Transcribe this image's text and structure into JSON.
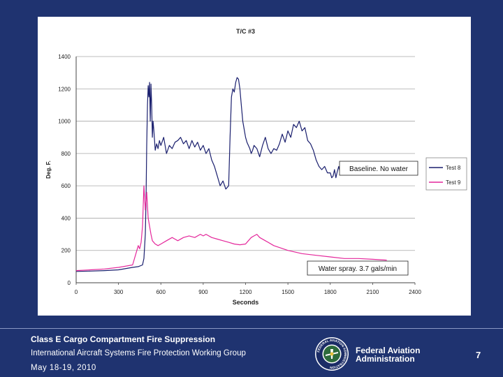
{
  "chart_data": {
    "type": "line",
    "title": "T/C #3",
    "xlabel": "Seconds",
    "ylabel": "Deg. F.",
    "xlim": [
      0,
      2400
    ],
    "ylim": [
      0,
      1400
    ],
    "xticks": [
      0,
      300,
      600,
      900,
      1200,
      1500,
      1800,
      2100,
      2400
    ],
    "yticks": [
      0,
      200,
      400,
      600,
      800,
      1000,
      1200,
      1400
    ],
    "grid": "horizontal",
    "legend_position": "right",
    "series": [
      {
        "name": "Test 8",
        "color": "#1a1f6e",
        "x": [
          0,
          100,
          200,
          300,
          400,
          440,
          470,
          480,
          490,
          495,
          500,
          505,
          510,
          515,
          520,
          525,
          530,
          535,
          540,
          545,
          550,
          560,
          570,
          580,
          590,
          600,
          620,
          640,
          660,
          680,
          700,
          720,
          740,
          760,
          780,
          800,
          820,
          840,
          860,
          880,
          900,
          920,
          940,
          960,
          980,
          1000,
          1020,
          1040,
          1060,
          1080,
          1090,
          1100,
          1110,
          1120,
          1130,
          1140,
          1150,
          1160,
          1170,
          1180,
          1190,
          1200,
          1210,
          1220,
          1230,
          1240,
          1250,
          1260,
          1280,
          1300,
          1320,
          1340,
          1360,
          1380,
          1400,
          1420,
          1440,
          1460,
          1480,
          1500,
          1520,
          1540,
          1560,
          1580,
          1600,
          1620,
          1640,
          1660,
          1680,
          1700,
          1720,
          1740,
          1760,
          1780,
          1800,
          1810,
          1820,
          1830,
          1840,
          1850,
          1860,
          1870,
          1880
        ],
        "values": [
          70,
          72,
          75,
          80,
          95,
          100,
          110,
          150,
          300,
          500,
          850,
          1100,
          1220,
          1150,
          1240,
          1000,
          1230,
          1100,
          900,
          1000,
          950,
          820,
          860,
          830,
          880,
          850,
          900,
          800,
          850,
          830,
          870,
          880,
          900,
          860,
          880,
          830,
          880,
          840,
          870,
          820,
          850,
          800,
          830,
          760,
          720,
          660,
          600,
          630,
          580,
          600,
          900,
          1150,
          1200,
          1180,
          1240,
          1270,
          1260,
          1200,
          1100,
          1000,
          950,
          900,
          870,
          850,
          830,
          800,
          820,
          850,
          830,
          780,
          850,
          900,
          830,
          800,
          830,
          820,
          860,
          920,
          870,
          940,
          900,
          980,
          960,
          1000,
          940,
          960,
          880,
          860,
          820,
          760,
          720,
          700,
          720,
          680,
          680,
          650,
          660,
          700,
          650,
          690,
          720,
          680,
          700
        ]
      },
      {
        "name": "Test 9",
        "color": "#e4279b",
        "x": [
          0,
          100,
          200,
          300,
          400,
          430,
          440,
          450,
          460,
          470,
          480,
          490,
          500,
          510,
          520,
          530,
          540,
          560,
          580,
          600,
          640,
          680,
          700,
          720,
          760,
          800,
          840,
          880,
          900,
          920,
          960,
          1000,
          1040,
          1080,
          1120,
          1160,
          1200,
          1220,
          1240,
          1260,
          1280,
          1300,
          1340,
          1400,
          1500,
          1600,
          1700,
          1800,
          1900,
          2000,
          2100,
          2200
        ],
        "values": [
          75,
          80,
          85,
          95,
          110,
          200,
          230,
          210,
          250,
          350,
          600,
          450,
          560,
          400,
          350,
          300,
          260,
          240,
          230,
          240,
          260,
          280,
          270,
          260,
          280,
          290,
          280,
          300,
          290,
          300,
          280,
          270,
          260,
          250,
          240,
          235,
          240,
          260,
          280,
          290,
          300,
          280,
          260,
          230,
          200,
          180,
          170,
          160,
          150,
          150,
          145,
          140
        ]
      }
    ],
    "annotations": [
      {
        "text": "Baseline. No water"
      },
      {
        "text": "Water spray. 3.7 gals/min"
      }
    ]
  },
  "footer": {
    "title": "Class E Cargo Compartment Fire Suppression",
    "org": "International Aircraft Systems Fire Protection Working Group",
    "date": "May 18-19, 2010",
    "agency_line1": "Federal Aviation",
    "agency_line2": "Administration",
    "page_number": "7"
  },
  "seal_text": "FEDERAL AVIATION ADMINISTRATION",
  "colors": {
    "background": "#1f3370",
    "panel": "#ffffff",
    "gridline": "#a8a8a8",
    "axis": "#444444"
  }
}
